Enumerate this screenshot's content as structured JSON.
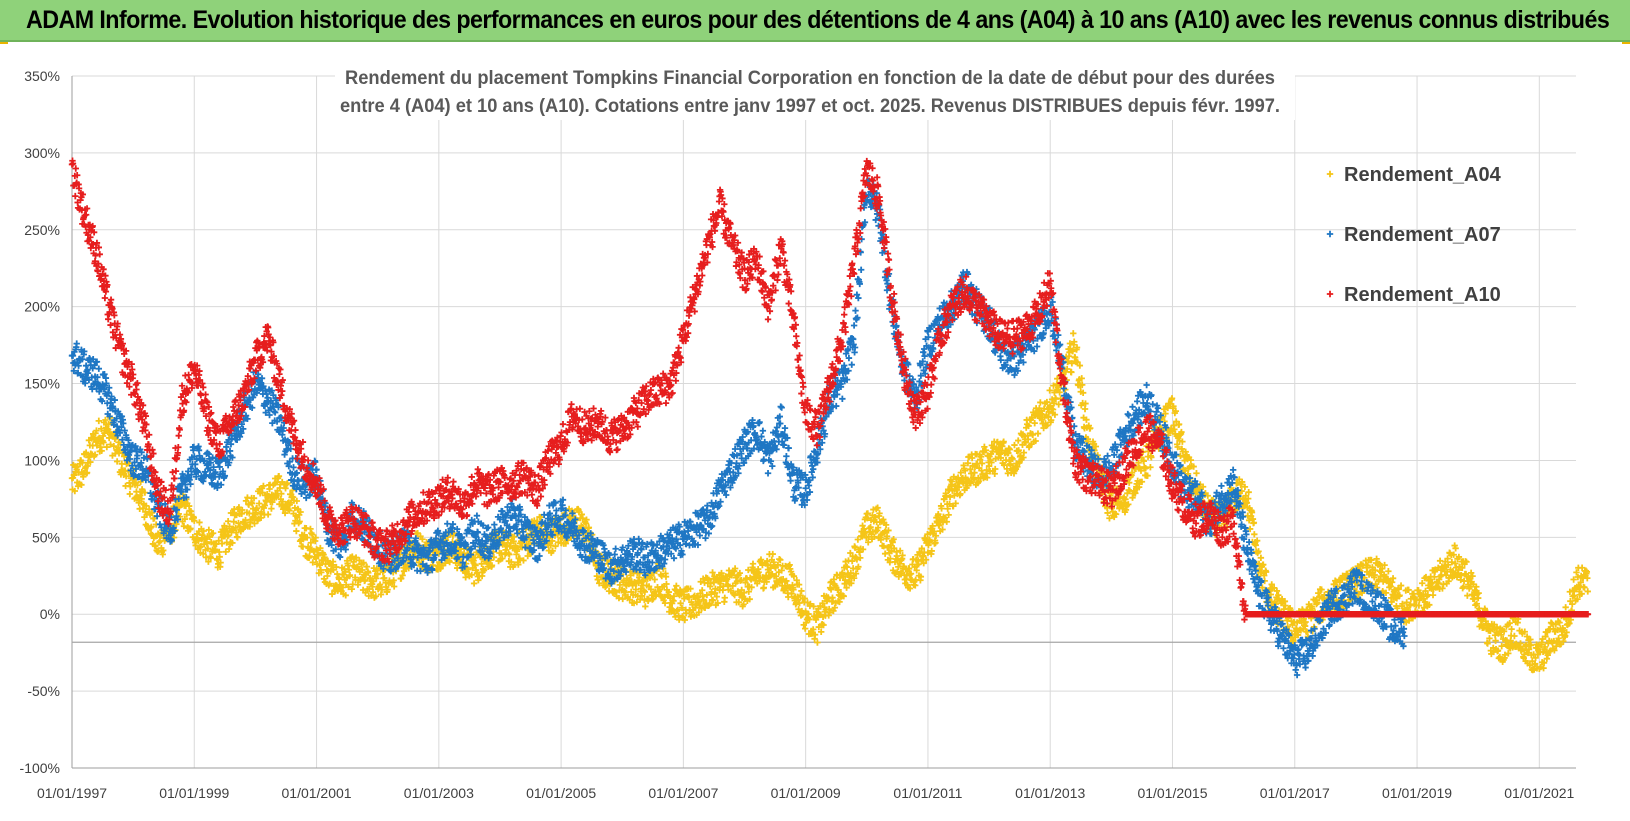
{
  "banner": {
    "title": "ADAM Informe. Evolution historique des performances en euros pour des détentions de 4 ans (A04) à 10 ans (A10) avec les revenus connus distribués"
  },
  "chart_data": {
    "type": "scatter",
    "title_lines": [
      "Rendement du placement Tompkins Financial Corporation en fonction de la date de début pour des durées",
      "entre 4 (A04) et 10 ans (A10). Cotations entre janv 1997 et oct. 2025.  Revenus DISTRIBUES depuis févr. 1997."
    ],
    "xlabel": "",
    "ylabel": "",
    "x_range": [
      1997.0,
      2021.6
    ],
    "ylim": [
      -100,
      350
    ],
    "y_ticks": [
      350,
      300,
      250,
      200,
      150,
      100,
      50,
      0,
      -50,
      -100
    ],
    "y_tick_labels": [
      "350%",
      "300%",
      "250%",
      "200%",
      "150%",
      "100%",
      "50%",
      "0%",
      "-50%",
      "-100%"
    ],
    "x_ticks": [
      1997,
      1999,
      2001,
      2003,
      2005,
      2007,
      2009,
      2011,
      2013,
      2015,
      2017,
      2019,
      2021
    ],
    "x_tick_labels": [
      "01/01/1997",
      "01/01/1999",
      "01/01/2001",
      "01/01/2003",
      "01/01/2005",
      "01/01/2007",
      "01/01/2009",
      "01/01/2011",
      "01/01/2013",
      "01/01/2015",
      "01/01/2017",
      "01/01/2019",
      "01/01/2021"
    ],
    "grid": true,
    "legend_position": "top-right",
    "series": [
      {
        "name": "Rendement_A04",
        "color": "#f5c518",
        "x": [
          1997.0,
          1997.2,
          1997.4,
          1997.6,
          1997.8,
          1998.0,
          1998.2,
          1998.4,
          1998.6,
          1998.8,
          1999.0,
          1999.2,
          1999.4,
          1999.6,
          1999.8,
          2000.0,
          2000.2,
          2000.4,
          2000.6,
          2000.8,
          2001.0,
          2001.2,
          2001.4,
          2001.6,
          2001.8,
          2002.0,
          2002.2,
          2002.4,
          2002.6,
          2002.8,
          2003.0,
          2003.2,
          2003.4,
          2003.6,
          2003.8,
          2004.0,
          2004.2,
          2004.4,
          2004.6,
          2004.8,
          2005.0,
          2005.2,
          2005.4,
          2005.6,
          2005.8,
          2006.0,
          2006.2,
          2006.4,
          2006.6,
          2006.8,
          2007.0,
          2007.2,
          2007.4,
          2007.6,
          2007.8,
          2008.0,
          2008.2,
          2008.4,
          2008.6,
          2008.8,
          2009.0,
          2009.2,
          2009.4,
          2009.6,
          2009.8,
          2010.0,
          2010.2,
          2010.4,
          2010.6,
          2010.8,
          2011.0,
          2011.2,
          2011.4,
          2011.6,
          2011.8,
          2012.0,
          2012.2,
          2012.4,
          2012.6,
          2012.8,
          2013.0,
          2013.2,
          2013.4,
          2013.6,
          2013.8,
          2014.0,
          2014.2,
          2014.4,
          2014.6,
          2014.8,
          2015.0,
          2015.2,
          2015.4,
          2015.6,
          2015.8,
          2016.0,
          2016.2,
          2016.4,
          2016.6,
          2016.8,
          2017.0,
          2017.2,
          2017.4,
          2017.6,
          2017.8,
          2018.0,
          2018.2,
          2018.4,
          2018.6,
          2018.8,
          2019.0,
          2019.2,
          2019.4,
          2019.6,
          2019.8,
          2020.0,
          2020.2,
          2020.4,
          2020.6,
          2020.8,
          2021.0,
          2021.2,
          2021.4,
          2021.6
        ],
        "values": [
          85,
          95,
          115,
          120,
          100,
          85,
          70,
          45,
          55,
          70,
          55,
          45,
          40,
          55,
          65,
          70,
          75,
          80,
          72,
          50,
          40,
          25,
          20,
          28,
          22,
          20,
          25,
          35,
          45,
          38,
          40,
          45,
          35,
          30,
          40,
          45,
          40,
          45,
          55,
          50,
          55,
          60,
          55,
          30,
          25,
          20,
          18,
          15,
          25,
          10,
          5,
          8,
          15,
          18,
          20,
          15,
          25,
          30,
          25,
          20,
          0,
          -8,
          10,
          20,
          35,
          55,
          60,
          40,
          30,
          25,
          45,
          60,
          80,
          90,
          95,
          100,
          105,
          100,
          115,
          125,
          135,
          150,
          175,
          120,
          90,
          70,
          75,
          90,
          100,
          120,
          130,
          100,
          80,
          65,
          60,
          75,
          80,
          35,
          10,
          0,
          -10,
          -5,
          5,
          10,
          15,
          20,
          25,
          25,
          15,
          5,
          10,
          15,
          25,
          35,
          25,
          5,
          -15,
          -20,
          -10,
          -25,
          -30,
          -15,
          -10,
          20
        ]
      },
      {
        "name": "Rendement_A07",
        "color": "#1f77c4",
        "x": [
          1997.0,
          1997.2,
          1997.4,
          1997.6,
          1997.8,
          1998.0,
          1998.2,
          1998.4,
          1998.6,
          1998.8,
          1999.0,
          1999.2,
          1999.4,
          1999.6,
          1999.8,
          2000.0,
          2000.2,
          2000.4,
          2000.6,
          2000.8,
          2001.0,
          2001.2,
          2001.4,
          2001.6,
          2001.8,
          2002.0,
          2002.2,
          2002.4,
          2002.6,
          2002.8,
          2003.0,
          2003.2,
          2003.4,
          2003.6,
          2003.8,
          2004.0,
          2004.2,
          2004.4,
          2004.6,
          2004.8,
          2005.0,
          2005.2,
          2005.4,
          2005.6,
          2005.8,
          2006.0,
          2006.2,
          2006.4,
          2006.6,
          2006.8,
          2007.0,
          2007.2,
          2007.4,
          2007.6,
          2007.8,
          2008.0,
          2008.2,
          2008.4,
          2008.6,
          2008.8,
          2009.0,
          2009.2,
          2009.4,
          2009.6,
          2009.8,
          2010.0,
          2010.2,
          2010.4,
          2010.6,
          2010.8,
          2011.0,
          2011.2,
          2011.4,
          2011.6,
          2011.8,
          2012.0,
          2012.2,
          2012.4,
          2012.6,
          2012.8,
          2013.0,
          2013.2,
          2013.4,
          2013.6,
          2013.8,
          2014.0,
          2014.2,
          2014.4,
          2014.6,
          2014.8,
          2015.0,
          2015.2,
          2015.4,
          2015.6,
          2015.8,
          2016.0,
          2016.2,
          2016.4,
          2016.6,
          2016.8,
          2017.0,
          2017.2,
          2017.4,
          2017.6,
          2017.8,
          2018.0,
          2018.2,
          2018.4,
          2018.6
        ],
        "values": [
          170,
          160,
          155,
          140,
          120,
          100,
          95,
          70,
          55,
          80,
          100,
          95,
          90,
          110,
          130,
          150,
          140,
          125,
          95,
          85,
          90,
          55,
          45,
          65,
          55,
          45,
          35,
          45,
          40,
          35,
          45,
          50,
          40,
          55,
          45,
          55,
          65,
          55,
          45,
          60,
          65,
          55,
          45,
          40,
          30,
          35,
          40,
          35,
          40,
          45,
          50,
          55,
          60,
          80,
          95,
          110,
          120,
          100,
          125,
          85,
          80,
          110,
          140,
          150,
          180,
          280,
          260,
          200,
          160,
          140,
          175,
          190,
          200,
          215,
          200,
          190,
          170,
          165,
          175,
          185,
          200,
          160,
          110,
          100,
          90,
          95,
          115,
          130,
          140,
          120,
          100,
          80,
          75,
          60,
          75,
          85,
          45,
          15,
          0,
          -15,
          -30,
          -25,
          -10,
          5,
          10,
          20,
          10,
          5,
          -10
        ]
      },
      {
        "name": "Rendement_A10",
        "color": "#e61e1e",
        "x": [
          1997.0,
          1997.2,
          1997.4,
          1997.6,
          1997.8,
          1998.0,
          1998.2,
          1998.4,
          1998.6,
          1998.8,
          1999.0,
          1999.2,
          1999.4,
          1999.6,
          1999.8,
          2000.0,
          2000.2,
          2000.4,
          2000.6,
          2000.8,
          2001.0,
          2001.2,
          2001.4,
          2001.6,
          2001.8,
          2002.0,
          2002.2,
          2002.4,
          2002.6,
          2002.8,
          2003.0,
          2003.2,
          2003.4,
          2003.6,
          2003.8,
          2004.0,
          2004.2,
          2004.4,
          2004.6,
          2004.8,
          2005.0,
          2005.2,
          2005.4,
          2005.6,
          2005.8,
          2006.0,
          2006.2,
          2006.4,
          2006.6,
          2006.8,
          2007.0,
          2007.2,
          2007.4,
          2007.6,
          2007.8,
          2008.0,
          2008.2,
          2008.4,
          2008.6,
          2008.8,
          2009.0,
          2009.2,
          2009.4,
          2009.6,
          2009.8,
          2010.0,
          2010.2,
          2010.4,
          2010.6,
          2010.8,
          2011.0,
          2011.2,
          2011.4,
          2011.6,
          2011.8,
          2012.0,
          2012.2,
          2012.4,
          2012.6,
          2012.8,
          2013.0,
          2013.2,
          2013.4,
          2013.6,
          2013.8,
          2014.0,
          2014.2,
          2014.4,
          2014.6,
          2014.8,
          2015.0,
          2015.2,
          2015.4,
          2015.6,
          2015.8,
          2016.0,
          2016.2,
          2016.4,
          2016.6,
          2016.8,
          2017.0,
          2017.2,
          2017.4,
          2017.6,
          2017.8,
          2018.0,
          2018.2,
          2018.4,
          2018.6,
          2018.8,
          2019.0,
          2019.2,
          2019.4,
          2019.6,
          2019.8,
          2020.0,
          2020.2,
          2020.4,
          2020.6,
          2020.8,
          2021.0,
          2021.2,
          2021.4,
          2021.6
        ],
        "values": [
          290,
          260,
          235,
          200,
          170,
          150,
          120,
          80,
          65,
          140,
          160,
          130,
          110,
          125,
          140,
          165,
          180,
          150,
          120,
          100,
          85,
          60,
          55,
          62,
          55,
          45,
          45,
          55,
          65,
          70,
          75,
          80,
          70,
          85,
          80,
          85,
          85,
          90,
          80,
          100,
          110,
          130,
          120,
          125,
          115,
          120,
          130,
          140,
          145,
          150,
          180,
          210,
          240,
          265,
          240,
          220,
          230,
          200,
          240,
          190,
          130,
          120,
          150,
          180,
          230,
          290,
          270,
          210,
          160,
          130,
          145,
          180,
          200,
          210,
          200,
          190,
          180,
          180,
          185,
          195,
          215,
          150,
          100,
          90,
          85,
          80,
          95,
          110,
          120,
          110,
          85,
          70,
          60,
          65,
          55,
          60,
          0,
          0,
          0,
          0,
          0,
          0,
          0,
          0,
          0,
          0,
          0,
          0,
          0,
          0,
          0,
          0,
          0,
          0,
          0,
          0,
          0,
          0,
          0,
          0,
          0,
          0,
          0,
          0
        ]
      }
    ]
  }
}
